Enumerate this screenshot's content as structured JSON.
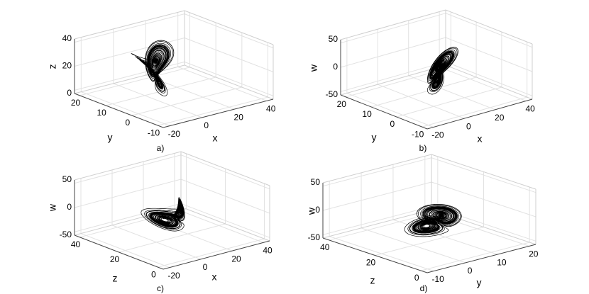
{
  "panels": [
    {
      "label": "a)",
      "h": {
        "label": "x",
        "ticks": [
          -20,
          0,
          20,
          40
        ]
      },
      "d": {
        "label": "y",
        "ticks": [
          20,
          10,
          0,
          -10
        ]
      },
      "v": {
        "label": "z",
        "ticks": [
          40,
          20,
          0
        ]
      }
    },
    {
      "label": "b)",
      "h": {
        "label": "x",
        "ticks": [
          -20,
          0,
          20,
          40
        ]
      },
      "d": {
        "label": "y",
        "ticks": [
          20,
          10,
          0,
          -10
        ]
      },
      "v": {
        "label": "w",
        "ticks": [
          50,
          0,
          -50
        ]
      }
    },
    {
      "label": "c)",
      "h": {
        "label": "x",
        "ticks": [
          -20,
          0,
          20,
          40
        ]
      },
      "d": {
        "label": "z",
        "ticks": [
          40,
          20,
          0
        ]
      },
      "v": {
        "label": "w",
        "ticks": [
          50,
          0,
          -50
        ]
      }
    },
    {
      "label": "d)",
      "h": {
        "label": "y",
        "ticks": [
          -10,
          0,
          10,
          20
        ]
      },
      "d": {
        "label": "z",
        "ticks": [
          40,
          20,
          0
        ]
      },
      "v": {
        "label": "w",
        "ticks": [
          50,
          0,
          -50
        ]
      }
    }
  ]
}
